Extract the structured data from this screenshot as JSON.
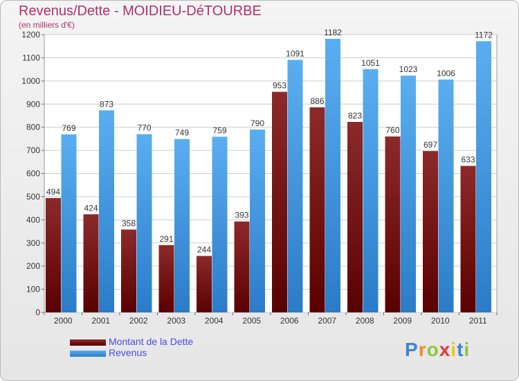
{
  "header": {
    "title": "Revenus/Dette - MOIDIEU-DéTOURBE",
    "subtitle": "(en milliers d'€)"
  },
  "legend": {
    "items": [
      {
        "label": "Montant de la Dette",
        "color": "#7a1010"
      },
      {
        "label": "Revenus",
        "color": "#4aa3e8"
      }
    ]
  },
  "logo": {
    "letters": [
      "P",
      "r",
      "o",
      "x",
      "i",
      "t",
      "i"
    ],
    "colors": [
      "#3a86d8",
      "#f08a2a",
      "#8cc63f",
      "#e23b3b",
      "#f0c419",
      "#3a86d8",
      "#8cc63f"
    ]
  },
  "chart_data": {
    "type": "bar",
    "title": "Revenus/Dette - MOIDIEU-DéTOURBE",
    "ylabel": "(en milliers d'€)",
    "categories": [
      "2000",
      "2001",
      "2002",
      "2003",
      "2004",
      "2005",
      "2006",
      "2007",
      "2008",
      "2009",
      "2010",
      "2011"
    ],
    "series": [
      {
        "name": "Montant de la Dette",
        "color": "#7a1010",
        "values": [
          494,
          424,
          358,
          291,
          244,
          393,
          953,
          886,
          823,
          760,
          697,
          633
        ]
      },
      {
        "name": "Revenus",
        "color": "#4aa3e8",
        "values": [
          769,
          873,
          770,
          749,
          759,
          790,
          1091,
          1182,
          1051,
          1023,
          1006,
          1172
        ]
      }
    ],
    "ylim": [
      0,
      1200
    ],
    "yticks": [
      0,
      100,
      200,
      300,
      400,
      500,
      600,
      700,
      800,
      900,
      1000,
      1100,
      1200
    ],
    "grid": true,
    "legend_position": "bottom-left"
  }
}
